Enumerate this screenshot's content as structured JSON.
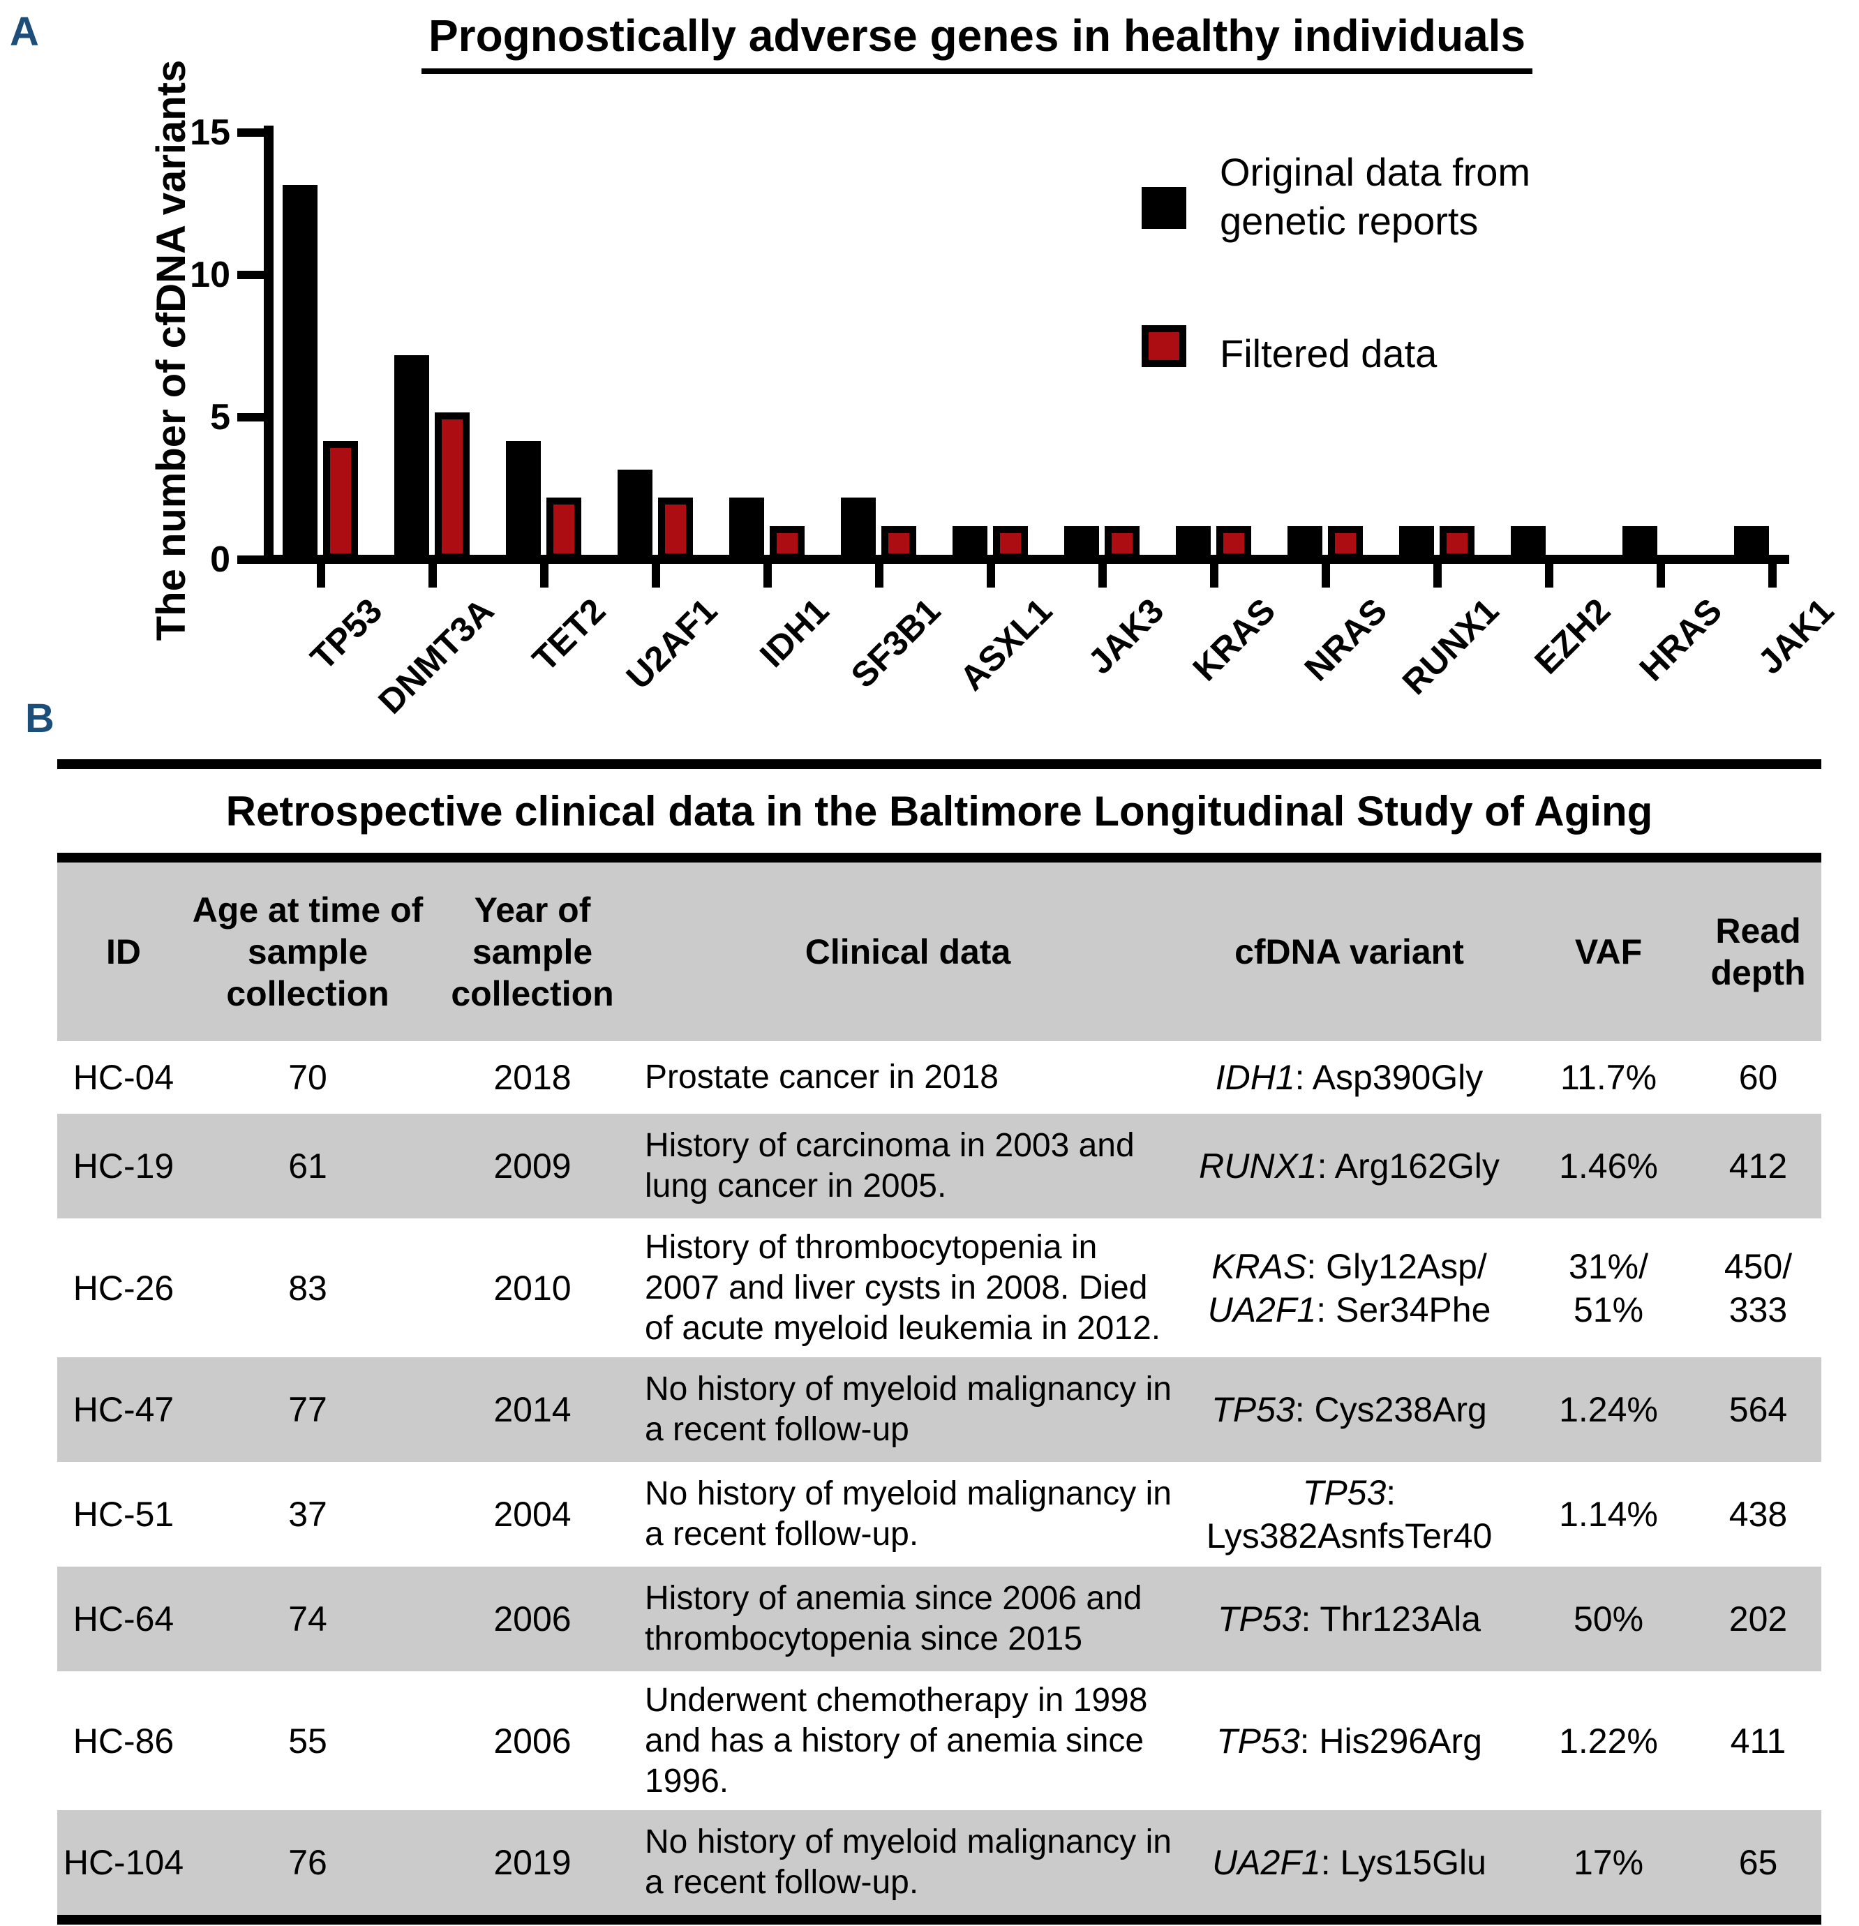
{
  "colors": {
    "bar_original": "#000000",
    "bar_filtered": "#ab0d12",
    "row_shade": "#cbcbcb",
    "panel_letter": "#1d4e79"
  },
  "panel_a": {
    "label": "A",
    "title": "Prognostically adverse genes in healthy individuals",
    "y_axis_label": "The number of cfDNA variants",
    "legend": {
      "original_label": "Original data from genetic reports",
      "filtered_label": "Filtered data"
    },
    "chart_data": {
      "type": "bar",
      "categories": [
        "TP53",
        "DNMT3A",
        "TET2",
        "U2AF1",
        "IDH1",
        "SF3B1",
        "ASXL1",
        "JAK3",
        "KRAS",
        "NRAS",
        "RUNX1",
        "EZH2",
        "HRAS",
        "JAK1"
      ],
      "series": [
        {
          "name": "Original data from genetic reports",
          "color": "#000000",
          "values": [
            13,
            7,
            4,
            3,
            2,
            2,
            1,
            1,
            1,
            1,
            1,
            1,
            1,
            1
          ]
        },
        {
          "name": "Filtered data",
          "color": "#ab0d12",
          "values": [
            4,
            5,
            2,
            2,
            1,
            1,
            1,
            1,
            1,
            1,
            1,
            0,
            0,
            0
          ]
        }
      ],
      "title": "Prognostically adverse genes in healthy individuals",
      "xlabel": "",
      "ylabel": "The number of cfDNA variants",
      "ylim": [
        0,
        15
      ],
      "yticks": [
        0,
        5,
        10,
        15
      ],
      "grid": false,
      "legend_position": "upper right"
    }
  },
  "panel_b": {
    "label": "B",
    "table_title": "Retrospective clinical data in the Baltimore Longitudinal Study of Aging",
    "columns": [
      "ID",
      "Age at time of sample collection",
      "Year of sample collection",
      "Clinical data",
      "cfDNA variant",
      "VAF",
      "Read depth"
    ],
    "rows": [
      {
        "id": "HC-04",
        "age": "70",
        "year": "2018",
        "clinical": "Prostate cancer in 2018",
        "variant_lines": [
          {
            "gene": "IDH1",
            "rest": ": Asp390Gly"
          }
        ],
        "vaf_lines": [
          "11.7%"
        ],
        "depth_lines": [
          "60"
        ]
      },
      {
        "id": "HC-19",
        "age": "61",
        "year": "2009",
        "clinical": "History of carcinoma in 2003 and lung cancer in 2005.",
        "variant_lines": [
          {
            "gene": "RUNX1",
            "rest": ": Arg162Gly"
          }
        ],
        "vaf_lines": [
          "1.46%"
        ],
        "depth_lines": [
          "412"
        ]
      },
      {
        "id": "HC-26",
        "age": "83",
        "year": "2010",
        "clinical": "History of thrombocytopenia in 2007 and liver cysts in 2008. Died of acute myeloid leukemia in 2012.",
        "variant_lines": [
          {
            "gene": "KRAS",
            "rest": ": Gly12Asp/"
          },
          {
            "gene": "UA2F1",
            "rest": ": Ser34Phe"
          }
        ],
        "vaf_lines": [
          "31%/",
          "51%"
        ],
        "depth_lines": [
          "450/",
          "333"
        ]
      },
      {
        "id": "HC-47",
        "age": "77",
        "year": "2014",
        "clinical": "No history of myeloid malignancy in a recent follow-up",
        "variant_lines": [
          {
            "gene": "TP53",
            "rest": ": Cys238Arg"
          }
        ],
        "vaf_lines": [
          "1.24%"
        ],
        "depth_lines": [
          "564"
        ]
      },
      {
        "id": "HC-51",
        "age": "37",
        "year": "2004",
        "clinical": "No history of myeloid malignancy in a recent follow-up.",
        "variant_lines": [
          {
            "gene": "TP53",
            "rest": ":"
          },
          {
            "gene": "",
            "rest": "Lys382AsnfsTer40"
          }
        ],
        "vaf_lines": [
          "1.14%"
        ],
        "depth_lines": [
          "438"
        ]
      },
      {
        "id": "HC-64",
        "age": "74",
        "year": "2006",
        "clinical": "History of anemia since 2006 and thrombocytopenia since 2015",
        "variant_lines": [
          {
            "gene": "TP53",
            "rest": ": Thr123Ala"
          }
        ],
        "vaf_lines": [
          "50%"
        ],
        "depth_lines": [
          "202"
        ]
      },
      {
        "id": "HC-86",
        "age": "55",
        "year": "2006",
        "clinical": "Underwent chemotherapy in 1998 and has a history of anemia since 1996.",
        "variant_lines": [
          {
            "gene": "TP53",
            "rest": ": His296Arg"
          }
        ],
        "vaf_lines": [
          "1.22%"
        ],
        "depth_lines": [
          "411"
        ]
      },
      {
        "id": "HC-104",
        "age": "76",
        "year": "2019",
        "clinical": "No history of myeloid malignancy in a recent follow-up.",
        "variant_lines": [
          {
            "gene": "UA2F1",
            "rest": ": Lys15Glu"
          }
        ],
        "vaf_lines": [
          "17%"
        ],
        "depth_lines": [
          "65"
        ]
      }
    ]
  }
}
